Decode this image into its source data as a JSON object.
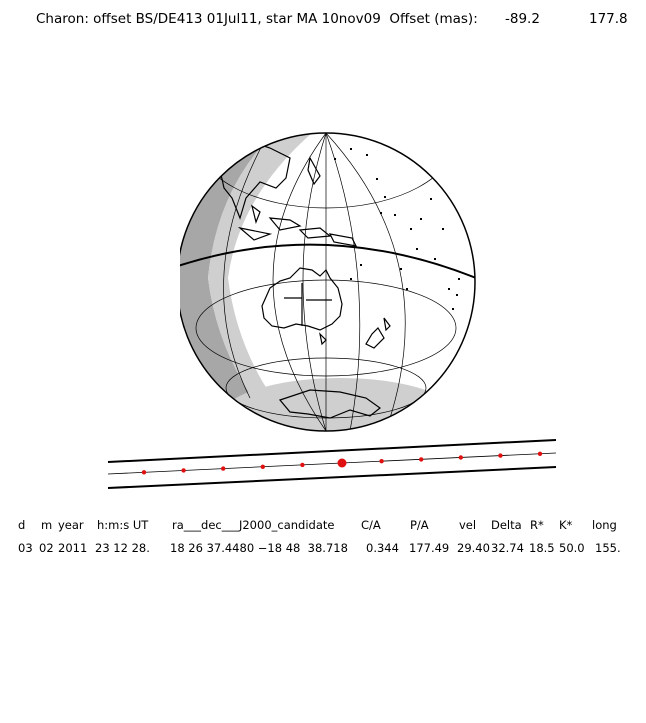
{
  "header": {
    "title": "Charon: offset BS/DE413 01Jul11, star MA 10nov09  Offset (mas):",
    "offset_ra": "-89.2",
    "offset_dec": "177.8"
  },
  "table": {
    "headers": [
      "d",
      "m",
      "year",
      "h:m:s UT",
      "ra___dec___J2000_candidate",
      "C/A",
      "P/A",
      "vel",
      "Delta",
      "R*",
      "K*",
      "long"
    ],
    "values": [
      "03",
      "02",
      "2011",
      "23 12 28.",
      "18 26 37.4480 −18 48  38.718",
      "0.344",
      "177.49",
      "29.40",
      "32.74",
      "18.5",
      "50.0",
      "155."
    ]
  },
  "colors": {
    "ink": "#000000",
    "night": "#cfcfcf",
    "twilight": "#a7a7a7",
    "path_points": "#e01010"
  },
  "track": {
    "points_count": 11,
    "closest_approach_index": 5
  }
}
